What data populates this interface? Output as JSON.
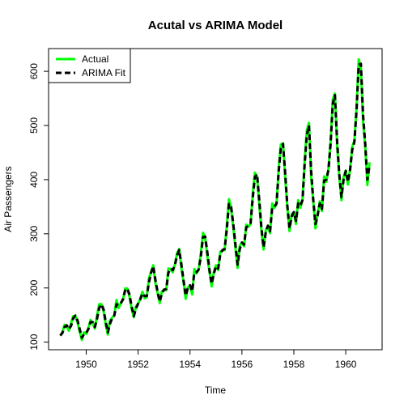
{
  "chart_data": {
    "type": "line",
    "title": "Acutal vs ARIMA Model",
    "xlabel": "Time",
    "ylabel": "Air Passengers",
    "xlim": [
      1949,
      1961
    ],
    "ylim": [
      100,
      630
    ],
    "x_ticks": [
      1950,
      1952,
      1954,
      1956,
      1958,
      1960
    ],
    "y_ticks": [
      100,
      200,
      300,
      400,
      500,
      600
    ],
    "grid": false,
    "legend_position": "top-left",
    "x_start": 1949,
    "x_step": 0.083333,
    "series": [
      {
        "name": "Actual",
        "color": "#00ff00",
        "style": "solid",
        "values": [
          112,
          118,
          132,
          129,
          121,
          135,
          148,
          148,
          136,
          119,
          104,
          118,
          115,
          126,
          141,
          135,
          125,
          149,
          170,
          170,
          158,
          133,
          114,
          140,
          145,
          150,
          178,
          163,
          172,
          178,
          199,
          199,
          184,
          162,
          146,
          166,
          171,
          180,
          193,
          181,
          183,
          218,
          230,
          242,
          209,
          191,
          172,
          194,
          196,
          196,
          236,
          235,
          229,
          243,
          264,
          272,
          237,
          211,
          180,
          201,
          204,
          188,
          235,
          227,
          234,
          264,
          302,
          293,
          259,
          229,
          203,
          229,
          242,
          233,
          267,
          269,
          270,
          315,
          364,
          347,
          312,
          274,
          237,
          278,
          284,
          277,
          317,
          313,
          318,
          374,
          413,
          405,
          355,
          306,
          271,
          306,
          315,
          301,
          356,
          348,
          355,
          422,
          465,
          467,
          404,
          347,
          305,
          336,
          340,
          318,
          362,
          348,
          363,
          435,
          491,
          505,
          404,
          359,
          310,
          337,
          360,
          342,
          406,
          396,
          420,
          472,
          548,
          559,
          463,
          407,
          362,
          405,
          417,
          391,
          419,
          461,
          472,
          535,
          622,
          606,
          508,
          461,
          390,
          432
        ]
      },
      {
        "name": "ARIMA Fit",
        "color": "#000000",
        "style": "dashed",
        "values": [
          112,
          117,
          128,
          131,
          124,
          130,
          144,
          149,
          140,
          124,
          108,
          115,
          117,
          124,
          137,
          137,
          128,
          143,
          163,
          170,
          161,
          138,
          118,
          134,
          144,
          149,
          170,
          168,
          172,
          179,
          195,
          199,
          188,
          166,
          148,
          162,
          171,
          179,
          190,
          185,
          185,
          210,
          228,
          240,
          215,
          193,
          175,
          190,
          197,
          198,
          228,
          236,
          233,
          242,
          260,
          270,
          244,
          214,
          186,
          200,
          205,
          194,
          228,
          229,
          234,
          258,
          294,
          295,
          266,
          233,
          208,
          226,
          240,
          236,
          262,
          270,
          272,
          308,
          355,
          350,
          318,
          280,
          243,
          272,
          284,
          280,
          312,
          315,
          320,
          366,
          405,
          410,
          363,
          312,
          275,
          302,
          315,
          305,
          348,
          350,
          356,
          415,
          458,
          466,
          412,
          352,
          310,
          332,
          340,
          324,
          356,
          352,
          362,
          428,
          482,
          500,
          416,
          362,
          318,
          334,
          356,
          346,
          398,
          400,
          418,
          466,
          540,
          556,
          472,
          410,
          368,
          400,
          416,
          396,
          418,
          455,
          470,
          528,
          612,
          614,
          520,
          466,
          400,
          426
        ]
      }
    ]
  }
}
